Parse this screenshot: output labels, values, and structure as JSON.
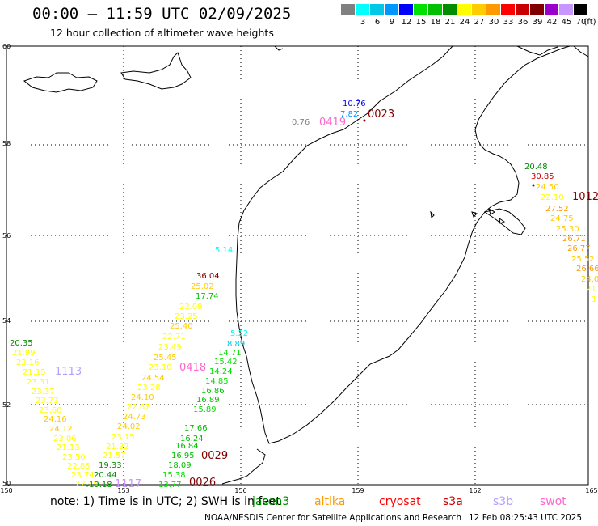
{
  "header": {
    "title": "00:00 – 11:59 UTC 02/09/2025",
    "subtitle": "12 hour collection of altimeter wave heights"
  },
  "color_scale": {
    "unit": "(ft)",
    "entries": [
      {
        "label": "",
        "color": "#808080"
      },
      {
        "label": "3",
        "color": "#00ffff"
      },
      {
        "label": "6",
        "color": "#00c8e6"
      },
      {
        "label": "9",
        "color": "#0096ff"
      },
      {
        "label": "12",
        "color": "#0000ff"
      },
      {
        "label": "15",
        "color": "#00e100"
      },
      {
        "label": "18",
        "color": "#00c000"
      },
      {
        "label": "21",
        "color": "#008c00"
      },
      {
        "label": "24",
        "color": "#ffff00"
      },
      {
        "label": "27",
        "color": "#ffcc00"
      },
      {
        "label": "30",
        "color": "#ff9900"
      },
      {
        "label": "33",
        "color": "#ff0000"
      },
      {
        "label": "36",
        "color": "#c80000"
      },
      {
        "label": "39",
        "color": "#800000"
      },
      {
        "label": "42",
        "color": "#9900cc"
      },
      {
        "label": "45",
        "color": "#c896ff"
      },
      {
        "label": "70",
        "color": "#000000"
      }
    ]
  },
  "map": {
    "lat_labels": [
      "60",
      "58",
      "56",
      "54",
      "52",
      "50"
    ],
    "lon_labels": [
      "150",
      "153",
      "156",
      "159",
      "162",
      "165"
    ],
    "readings": [
      {
        "text": "10.76",
        "color": "#0000ff"
      },
      {
        "text": "7.82",
        "color": "#0096ff"
      },
      {
        "text": "0.76",
        "color": "#808080"
      },
      {
        "text": "0419",
        "color": "#ff66cc"
      },
      {
        "text": "0023",
        "color": "#800000"
      },
      {
        "text": "20.48",
        "color": "#008c00"
      },
      {
        "text": "30.85",
        "color": "#c80000"
      },
      {
        "text": "24.50",
        "color": "#ffcc00"
      },
      {
        "text": "22.10",
        "color": "#ffff00"
      },
      {
        "text": "1012",
        "color": "#800000"
      },
      {
        "text": "27.52",
        "color": "#ff9900"
      },
      {
        "text": "24.75",
        "color": "#ffcc00"
      },
      {
        "text": "25.30",
        "color": "#ffcc00"
      },
      {
        "text": "26.71",
        "color": "#ff9900"
      },
      {
        "text": "26.77",
        "color": "#ff9900"
      },
      {
        "text": "25.52",
        "color": "#ffcc00"
      },
      {
        "text": "26.66",
        "color": "#ff9900"
      },
      {
        "text": "24.0",
        "color": "#ffcc00"
      },
      {
        "text": "21.",
        "color": "#ffff00"
      },
      {
        "text": "1",
        "color": "#ffff00"
      },
      {
        "text": "5.14",
        "color": "#00ffff"
      },
      {
        "text": "36.04",
        "color": "#800000"
      },
      {
        "text": "25.02",
        "color": "#ffcc00"
      },
      {
        "text": "17.74",
        "color": "#00c000"
      },
      {
        "text": "22.09",
        "color": "#ffff00"
      },
      {
        "text": "23.25",
        "color": "#ffff00"
      },
      {
        "text": "25.40",
        "color": "#ffcc00"
      },
      {
        "text": "22.71",
        "color": "#ffff00"
      },
      {
        "text": "23.49",
        "color": "#ffff00"
      },
      {
        "text": "25.45",
        "color": "#ffcc00"
      },
      {
        "text": "23.10",
        "color": "#ffff00"
      },
      {
        "text": "0418",
        "color": "#ff66cc"
      },
      {
        "text": "24.54",
        "color": "#ffcc00"
      },
      {
        "text": "23.28",
        "color": "#ffff00"
      },
      {
        "text": "24.10",
        "color": "#ffcc00"
      },
      {
        "text": "22.67",
        "color": "#ffff00"
      },
      {
        "text": "24.73",
        "color": "#ffcc00"
      },
      {
        "text": "24.02",
        "color": "#ffcc00"
      },
      {
        "text": "23.15",
        "color": "#ffff00"
      },
      {
        "text": "21.32",
        "color": "#ffff00"
      },
      {
        "text": "21.57",
        "color": "#ffff00"
      },
      {
        "text": "5.22",
        "color": "#00ffff"
      },
      {
        "text": "8.89",
        "color": "#00c8e6"
      },
      {
        "text": "14.71",
        "color": "#00e100"
      },
      {
        "text": "15.42",
        "color": "#00e100"
      },
      {
        "text": "14.24",
        "color": "#00e100"
      },
      {
        "text": "14.85",
        "color": "#00e100"
      },
      {
        "text": "16.86",
        "color": "#00c000"
      },
      {
        "text": "16.89",
        "color": "#00c000"
      },
      {
        "text": "15.89",
        "color": "#00e100"
      },
      {
        "text": "17.66",
        "color": "#00c000"
      },
      {
        "text": "16.24",
        "color": "#00c000"
      },
      {
        "text": "16.84",
        "color": "#00c000"
      },
      {
        "text": "16.95",
        "color": "#00c000"
      },
      {
        "text": "0029",
        "color": "#800000"
      },
      {
        "text": "18.09",
        "color": "#00c000"
      },
      {
        "text": "15.38",
        "color": "#00e100"
      },
      {
        "text": "13.77",
        "color": "#00e100"
      },
      {
        "text": "0026",
        "color": "#800000"
      },
      {
        "text": "20.35",
        "color": "#008c00"
      },
      {
        "text": "21.99",
        "color": "#ffff00"
      },
      {
        "text": "22.16",
        "color": "#ffff00"
      },
      {
        "text": "21.15",
        "color": "#ffff00"
      },
      {
        "text": "1113",
        "color": "#b4a0ff"
      },
      {
        "text": "23.31",
        "color": "#ffff00"
      },
      {
        "text": "23.37",
        "color": "#ffff00"
      },
      {
        "text": "23.73",
        "color": "#ffff00"
      },
      {
        "text": "23.60",
        "color": "#ffff00"
      },
      {
        "text": "24.16",
        "color": "#ffcc00"
      },
      {
        "text": "24.12",
        "color": "#ffcc00"
      },
      {
        "text": "23.06",
        "color": "#ffff00"
      },
      {
        "text": "21.13",
        "color": "#ffff00"
      },
      {
        "text": "23.50",
        "color": "#ffff00"
      },
      {
        "text": "22.85",
        "color": "#ffff00"
      },
      {
        "text": "23.74",
        "color": "#ffff00"
      },
      {
        "text": "22.19",
        "color": "#ffff00"
      },
      {
        "text": "19.33",
        "color": "#008c00"
      },
      {
        "text": "20.44",
        "color": "#008c00"
      },
      {
        "text": "19.18",
        "color": "#008c00"
      },
      {
        "text": "1117",
        "color": "#c896ff"
      }
    ]
  },
  "footer": {
    "note": "note:  1) Time is in UTC;  2) SWH is in feet",
    "satellites": [
      {
        "name": "jason3",
        "color": "#008c00"
      },
      {
        "name": "altika",
        "color": "#ff9900"
      },
      {
        "name": "cryosat",
        "color": "#ff0000"
      },
      {
        "name": "s3a",
        "color": "#c80000"
      },
      {
        "name": "s3b",
        "color": "#b4a0ff"
      },
      {
        "name": "swot",
        "color": "#ff66cc"
      }
    ],
    "credit": "NOAA/NESDIS Center for Satellite Applications and Research",
    "timestamp": "12 Feb 08:25:43 UTC 2025"
  }
}
